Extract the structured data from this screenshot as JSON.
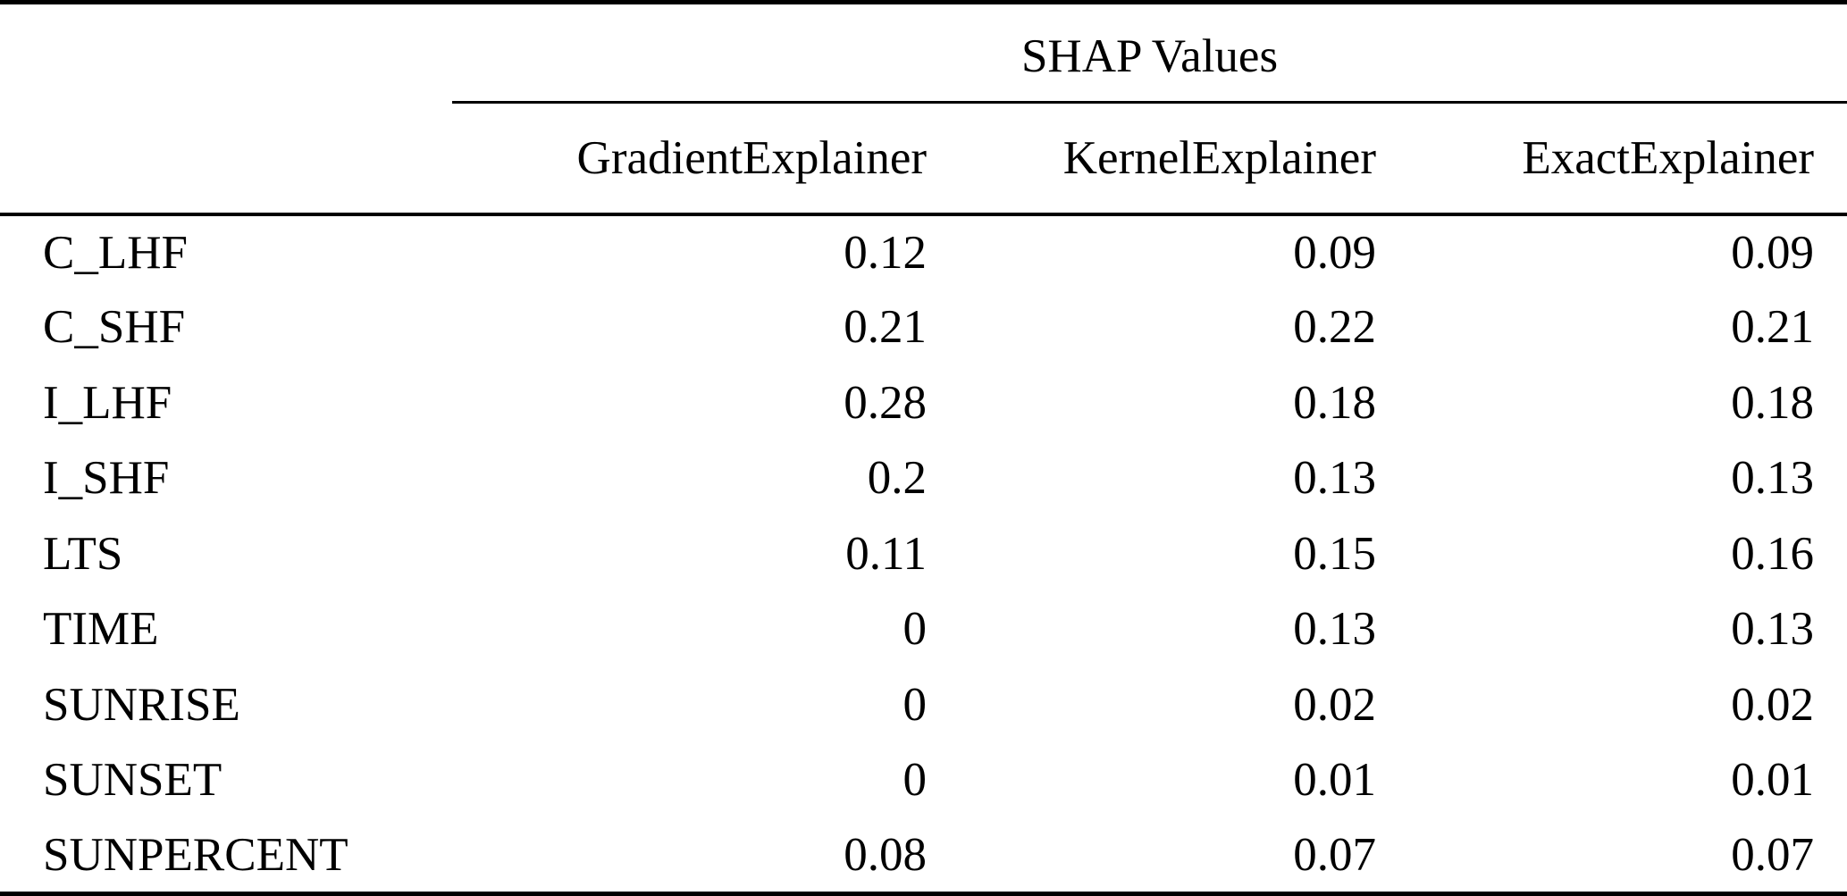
{
  "colors": {
    "background": "#ffffff",
    "text": "#000000",
    "rule": "#000000"
  },
  "table": {
    "group_header": "SHAP Values",
    "columns": [
      "GradientExplainer",
      "KernelExplainer",
      "ExactExplainer"
    ],
    "rows": [
      {
        "feature": "C_LHF",
        "values": [
          "0.12",
          "0.09",
          "0.09"
        ]
      },
      {
        "feature": "C_SHF",
        "values": [
          "0.21",
          "0.22",
          "0.21"
        ]
      },
      {
        "feature": "I_LHF",
        "values": [
          "0.28",
          "0.18",
          "0.18"
        ]
      },
      {
        "feature": "I_SHF",
        "values": [
          "0.2",
          "0.13",
          "0.13"
        ]
      },
      {
        "feature": "LTS",
        "values": [
          "0.11",
          "0.15",
          "0.16"
        ]
      },
      {
        "feature": "TIME",
        "values": [
          "0",
          "0.13",
          "0.13"
        ]
      },
      {
        "feature": "SUNRISE",
        "values": [
          "0",
          "0.02",
          "0.02"
        ]
      },
      {
        "feature": "SUNSET",
        "values": [
          "0",
          "0.01",
          "0.01"
        ]
      },
      {
        "feature": "SUNPERCENT",
        "values": [
          "0.08",
          "0.07",
          "0.07"
        ]
      }
    ]
  },
  "chart_data": {
    "type": "table",
    "title": "SHAP Values",
    "categories": [
      "C_LHF",
      "C_SHF",
      "I_LHF",
      "I_SHF",
      "LTS",
      "TIME",
      "SUNRISE",
      "SUNSET",
      "SUNPERCENT"
    ],
    "series": [
      {
        "name": "GradientExplainer",
        "values": [
          0.12,
          0.21,
          0.28,
          0.2,
          0.11,
          0,
          0,
          0,
          0.08
        ]
      },
      {
        "name": "KernelExplainer",
        "values": [
          0.09,
          0.22,
          0.18,
          0.13,
          0.15,
          0.13,
          0.02,
          0.01,
          0.07
        ]
      },
      {
        "name": "ExactExplainer",
        "values": [
          0.09,
          0.21,
          0.18,
          0.13,
          0.16,
          0.13,
          0.02,
          0.01,
          0.07
        ]
      }
    ]
  }
}
